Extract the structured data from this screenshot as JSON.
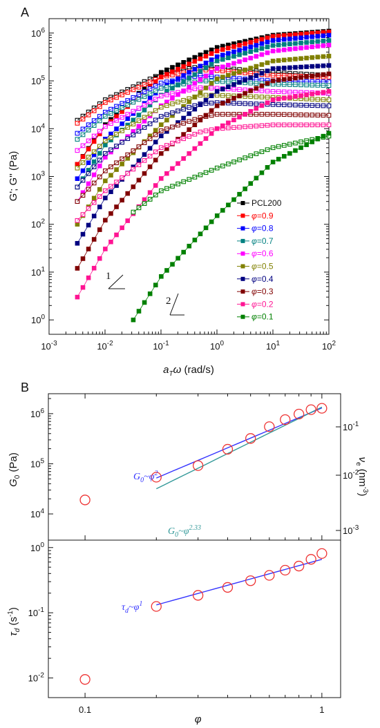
{
  "panel_a": {
    "label": "A",
    "xlabel": "a_T ω (rad/s)",
    "ylabel": "G'; G'' (Pa)",
    "slope_labels": [
      "1",
      "2"
    ]
  },
  "panel_b": {
    "label": "B",
    "xlabel": "φ",
    "ylabel_top": "G_0 (Pa)",
    "ylabel_right": "ν_e (nm^-3)",
    "ylabel_bottom": "τ_d (s^-1)"
  },
  "colors": {
    "PCL200": "#000000",
    "0.9": "#ff0000",
    "0.8": "#0000ff",
    "0.7": "#008080",
    "0.6": "#ff00ff",
    "0.5": "#808000",
    "0.4": "#000080",
    "0.3": "#800000",
    "0.2": "#ff1493",
    "0.1": "#008000",
    "fit_blue": "#3333ff",
    "fit_teal": "#339999",
    "circle": "#ee3333"
  },
  "chart_data": [
    {
      "type": "line",
      "panel": "A",
      "xscale": "log",
      "yscale": "log",
      "xlim": [
        0.001,
        100
      ],
      "ylim": [
        0.5,
        2000000
      ],
      "xticks": [
        "10-3",
        "10-2",
        "10-1",
        "100",
        "101",
        "102"
      ],
      "yticks": [
        "100",
        "101",
        "102",
        "103",
        "104",
        "105",
        "106"
      ],
      "xlabel": "aTω (rad/s)",
      "ylabel": "G'; G'' (Pa)",
      "legend_position": "right",
      "series": [
        {
          "name": "PCL200",
          "color_key": "PCL200",
          "x_start": 0.0032,
          "x_end": 100,
          "Gp": [
            [
              0.0032,
              1800
            ],
            [
              0.01,
              12000
            ],
            [
              0.1,
              150000
            ],
            [
              1,
              500000
            ],
            [
              10,
              900000
            ],
            [
              100,
              1100000
            ]
          ],
          "Gpp": [
            [
              0.0032,
              15000
            ],
            [
              0.01,
              40000
            ],
            [
              0.1,
              140000
            ],
            [
              0.5,
              200000
            ],
            [
              1,
              190000
            ],
            [
              10,
              150000
            ],
            [
              100,
              130000
            ]
          ]
        },
        {
          "name": "φ=0.9",
          "color_key": "0.9",
          "x_start": 0.0032,
          "x_end": 100,
          "Gp": [
            [
              0.0032,
              1800
            ],
            [
              0.01,
              11000
            ],
            [
              0.1,
              120000
            ],
            [
              1,
              420000
            ],
            [
              10,
              850000
            ],
            [
              100,
              1050000
            ]
          ],
          "Gpp": [
            [
              0.0032,
              13000
            ],
            [
              0.01,
              35000
            ],
            [
              0.1,
              120000
            ],
            [
              0.5,
              170000
            ],
            [
              1,
              165000
            ],
            [
              10,
              130000
            ],
            [
              100,
              120000
            ]
          ]
        },
        {
          "name": "φ=0.8",
          "color_key": "0.8",
          "x_start": 0.0032,
          "x_end": 100,
          "Gp": [
            [
              0.0032,
              900
            ],
            [
              0.01,
              6000
            ],
            [
              0.1,
              70000
            ],
            [
              1,
              320000
            ],
            [
              10,
              700000
            ],
            [
              100,
              900000
            ]
          ],
          "Gpp": [
            [
              0.0032,
              8000
            ],
            [
              0.01,
              22000
            ],
            [
              0.1,
              90000
            ],
            [
              0.5,
              130000
            ],
            [
              1,
              120000
            ],
            [
              10,
              100000
            ],
            [
              100,
              95000
            ]
          ]
        },
        {
          "name": "φ=0.7",
          "color_key": "0.7",
          "x_start": 0.0032,
          "x_end": 100,
          "Gp": [
            [
              0.0032,
              600
            ],
            [
              0.01,
              4500
            ],
            [
              0.1,
              50000
            ],
            [
              1,
              260000
            ],
            [
              10,
              550000
            ],
            [
              100,
              700000
            ]
          ],
          "Gpp": [
            [
              0.0032,
              6000
            ],
            [
              0.01,
              18000
            ],
            [
              0.1,
              70000
            ],
            [
              0.5,
              100000
            ],
            [
              1,
              98000
            ],
            [
              10,
              85000
            ],
            [
              100,
              80000
            ]
          ]
        },
        {
          "name": "φ=0.6",
          "color_key": "0.6",
          "x_start": 0.0032,
          "x_end": 100,
          "Gp": [
            [
              0.0032,
              300
            ],
            [
              0.01,
              2500
            ],
            [
              0.1,
              30000
            ],
            [
              1,
              180000
            ],
            [
              10,
              420000
            ],
            [
              100,
              560000
            ]
          ],
          "Gpp": [
            [
              0.0032,
              3500
            ],
            [
              0.01,
              11000
            ],
            [
              0.1,
              48000
            ],
            [
              0.5,
              72000
            ],
            [
              1,
              70000
            ],
            [
              10,
              60000
            ],
            [
              100,
              55000
            ]
          ]
        },
        {
          "name": "φ=0.5",
          "color_key": "0.5",
          "x_start": 0.0032,
          "x_end": 100,
          "Gp": [
            [
              0.0032,
              100
            ],
            [
              0.01,
              800
            ],
            [
              0.1,
              12000
            ],
            [
              1,
              110000
            ],
            [
              10,
              260000
            ],
            [
              100,
              330000
            ]
          ],
          "Gpp": [
            [
              0.0032,
              1500
            ],
            [
              0.01,
              5500
            ],
            [
              0.1,
              28000
            ],
            [
              0.5,
              50000
            ],
            [
              1,
              50000
            ],
            [
              10,
              45000
            ],
            [
              100,
              40000
            ]
          ]
        },
        {
          "name": "φ=0.4",
          "color_key": "0.4",
          "x_start": 0.0032,
          "x_end": 100,
          "Gp": [
            [
              0.0032,
              40
            ],
            [
              0.01,
              350
            ],
            [
              0.1,
              7000
            ],
            [
              1,
              60000
            ],
            [
              10,
              180000
            ],
            [
              100,
              210000
            ]
          ],
          "Gpp": [
            [
              0.0032,
              600
            ],
            [
              0.01,
              3000
            ],
            [
              0.1,
              18000
            ],
            [
              0.5,
              33000
            ],
            [
              1,
              35000
            ],
            [
              10,
              32000
            ],
            [
              100,
              30000
            ]
          ]
        },
        {
          "name": "φ=0.3",
          "color_key": "0.3",
          "x_start": 0.0032,
          "x_end": 100,
          "Gp": [
            [
              0.0032,
              12
            ],
            [
              0.01,
              120
            ],
            [
              0.1,
              3000
            ],
            [
              1,
              30000
            ],
            [
              10,
              100000
            ],
            [
              100,
              140000
            ]
          ],
          "Gpp": [
            [
              0.0032,
              300
            ],
            [
              0.01,
              1300
            ],
            [
              0.1,
              9000
            ],
            [
              0.5,
              17000
            ],
            [
              1,
              20000
            ],
            [
              10,
              20000
            ],
            [
              100,
              19000
            ]
          ]
        },
        {
          "name": "φ=0.2",
          "color_key": "0.2",
          "x_start": 0.0032,
          "x_end": 100,
          "Gp": [
            [
              0.0032,
              3
            ],
            [
              0.01,
              30
            ],
            [
              0.1,
              900
            ],
            [
              1,
              10000
            ],
            [
              10,
              40000
            ],
            [
              100,
              60000
            ]
          ],
          "Gpp": [
            [
              0.0032,
              120
            ],
            [
              0.01,
              500
            ],
            [
              0.1,
              4000
            ],
            [
              0.5,
              8500
            ],
            [
              1,
              10000
            ],
            [
              10,
              12000
            ],
            [
              100,
              12000
            ]
          ]
        },
        {
          "name": "φ=0.1",
          "color_key": "0.1",
          "x_start": 0.032,
          "x_end": 100,
          "Gp": [
            [
              0.032,
              1
            ],
            [
              0.1,
              8
            ],
            [
              1,
              150
            ],
            [
              10,
              2000
            ],
            [
              100,
              8000
            ]
          ],
          "Gpp": [
            [
              0.032,
              180
            ],
            [
              0.1,
              500
            ],
            [
              1,
              1500
            ],
            [
              10,
              4000
            ],
            [
              100,
              7000
            ]
          ]
        }
      ]
    },
    {
      "type": "scatter",
      "panel": "B-top",
      "xscale": "log",
      "yscale": "log",
      "xlim": [
        0.07,
        1.2
      ],
      "ylim": [
        3000,
        2500000
      ],
      "yticks": [
        "104",
        "105",
        "106"
      ],
      "right_yticks": [
        "10-3",
        "10-2",
        "10-1"
      ],
      "ylabel": "G0 (Pa)",
      "right_ylabel": "νe (nm-3)",
      "points": [
        [
          0.1,
          19000
        ],
        [
          0.2,
          54000
        ],
        [
          0.3,
          92000
        ],
        [
          0.4,
          195000
        ],
        [
          0.5,
          320000
        ],
        [
          0.6,
          550000
        ],
        [
          0.7,
          760000
        ],
        [
          0.8,
          980000
        ],
        [
          0.9,
          1200000
        ],
        [
          1.0,
          1280000
        ]
      ],
      "fits": [
        {
          "label": "G0~φ2",
          "exponent": 2,
          "prefactor": 1300000,
          "x_range": [
            0.2,
            1.0
          ],
          "color_key": "fit_blue"
        },
        {
          "label": "G0~φ2.33",
          "exponent": 2.33,
          "prefactor": 1350000,
          "x_range": [
            0.2,
            1.0
          ],
          "color_key": "fit_teal"
        }
      ]
    },
    {
      "type": "scatter",
      "panel": "B-bottom",
      "xscale": "log",
      "yscale": "log",
      "xlim": [
        0.07,
        1.2
      ],
      "ylim": [
        0.005,
        1.3
      ],
      "xticks": [
        "0.1",
        "1"
      ],
      "yticks": [
        "10-2",
        "10-1",
        "100"
      ],
      "xlabel": "φ",
      "ylabel": "τd (s-1)",
      "points": [
        [
          0.1,
          0.0095
        ],
        [
          0.2,
          0.125
        ],
        [
          0.3,
          0.185
        ],
        [
          0.4,
          0.245
        ],
        [
          0.5,
          0.31
        ],
        [
          0.6,
          0.375
        ],
        [
          0.7,
          0.45
        ],
        [
          0.8,
          0.52
        ],
        [
          0.9,
          0.66
        ],
        [
          1.0,
          0.81
        ]
      ],
      "fits": [
        {
          "label": "τd~φ1",
          "exponent": 1,
          "prefactor": 0.66,
          "x_range": [
            0.2,
            1.0
          ],
          "color_key": "fit_blue"
        }
      ]
    }
  ]
}
